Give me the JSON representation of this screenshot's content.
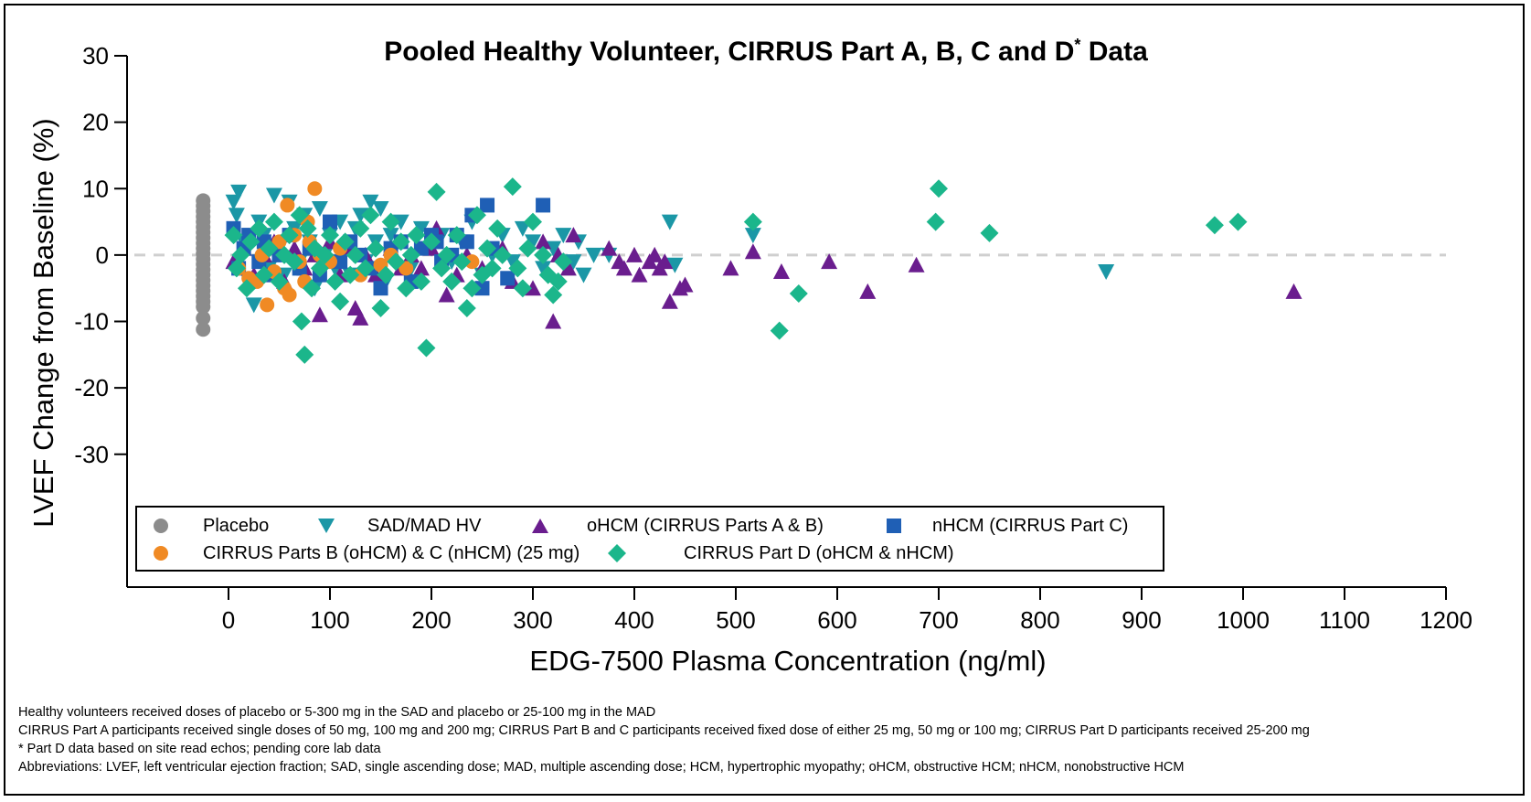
{
  "colors": {
    "placebo": "#8c8c8c",
    "sad_mad": "#1b97a6",
    "ohcm": "#6a1d8e",
    "nhcm": "#1f5fb5",
    "cirrus_bc": "#f08a24",
    "cirrus_d": "#1bb68b",
    "zero_line": "#cfcfcf"
  },
  "chart_data": {
    "type": "scatter",
    "title": "Pooled Healthy Volunteer, CIRRUS Part A, B, C and D",
    "title_sup": "*",
    "title_suffix": " Data",
    "xlabel": "EDG-7500 Plasma Concentration (ng/ml)",
    "ylabel": "LVEF Change from Baseline (%)",
    "xlim": [
      -100,
      1200
    ],
    "ylim": [
      -50,
      30
    ],
    "x_ticks": [
      0,
      100,
      200,
      300,
      400,
      500,
      600,
      700,
      800,
      900,
      1000,
      1100,
      1200
    ],
    "y_ticks": [
      30,
      20,
      10,
      0,
      -10,
      -20,
      -30
    ],
    "grid": false,
    "reference_line_y": 0,
    "legend_position": "bottom-left inside plot",
    "series": [
      {
        "name": "Placebo",
        "marker": "circle",
        "color_key": "placebo",
        "points": [
          [
            -25,
            8.2
          ],
          [
            -25,
            7.4
          ],
          [
            -25,
            6.6
          ],
          [
            -25,
            5.8
          ],
          [
            -25,
            5.0
          ],
          [
            -25,
            4.2
          ],
          [
            -25,
            3.4
          ],
          [
            -25,
            2.6
          ],
          [
            -25,
            1.8
          ],
          [
            -25,
            1.0
          ],
          [
            -25,
            0.2
          ],
          [
            -25,
            -0.6
          ],
          [
            -25,
            -1.4
          ],
          [
            -25,
            -2.2
          ],
          [
            -25,
            -3.0
          ],
          [
            -25,
            -3.8
          ],
          [
            -25,
            -4.6
          ],
          [
            -25,
            -5.4
          ],
          [
            -25,
            -6.2
          ],
          [
            -25,
            -7.0
          ],
          [
            -25,
            -7.8
          ],
          [
            -25,
            -9.5
          ],
          [
            -25,
            -11.2
          ]
        ]
      },
      {
        "name": "SAD/MAD HV",
        "marker": "triangle-down",
        "color_key": "sad_mad",
        "points": [
          [
            5,
            8
          ],
          [
            8,
            6
          ],
          [
            10,
            9.5
          ],
          [
            15,
            2
          ],
          [
            20,
            -4
          ],
          [
            25,
            -7.5
          ],
          [
            30,
            5
          ],
          [
            35,
            3
          ],
          [
            40,
            -2
          ],
          [
            45,
            9
          ],
          [
            50,
            1
          ],
          [
            55,
            -3
          ],
          [
            60,
            8
          ],
          [
            65,
            4
          ],
          [
            70,
            -1
          ],
          [
            75,
            6
          ],
          [
            80,
            2
          ],
          [
            85,
            -5
          ],
          [
            90,
            7
          ],
          [
            95,
            0
          ],
          [
            100,
            3
          ],
          [
            105,
            -2
          ],
          [
            110,
            5
          ],
          [
            115,
            1
          ],
          [
            120,
            -3
          ],
          [
            125,
            4
          ],
          [
            130,
            6
          ],
          [
            135,
            -1
          ],
          [
            140,
            8
          ],
          [
            145,
            2
          ],
          [
            150,
            7
          ],
          [
            155,
            -4
          ],
          [
            160,
            3
          ],
          [
            170,
            5
          ],
          [
            180,
            -2
          ],
          [
            190,
            4
          ],
          [
            200,
            1
          ],
          [
            210,
            3
          ],
          [
            220,
            -1
          ],
          [
            230,
            2
          ],
          [
            240,
            5
          ],
          [
            250,
            -3
          ],
          [
            260,
            0
          ],
          [
            270,
            3
          ],
          [
            280,
            -1
          ],
          [
            290,
            4
          ],
          [
            300,
            2
          ],
          [
            310,
            -2
          ],
          [
            320,
            1
          ],
          [
            330,
            3
          ],
          [
            340,
            -1
          ],
          [
            345,
            2
          ],
          [
            350,
            -3
          ],
          [
            360,
            0
          ],
          [
            375,
            0
          ],
          [
            435,
            5
          ],
          [
            440,
            -1.5
          ],
          [
            517,
            3
          ],
          [
            865,
            -2.5
          ]
        ]
      },
      {
        "name": "oHCM (CIRRUS Parts  A & B)",
        "marker": "triangle-up",
        "color_key": "ohcm",
        "points": [
          [
            5,
            -1
          ],
          [
            15,
            1
          ],
          [
            25,
            -3
          ],
          [
            35,
            0
          ],
          [
            45,
            2
          ],
          [
            55,
            -4
          ],
          [
            65,
            1
          ],
          [
            75,
            -2
          ],
          [
            85,
            0
          ],
          [
            90,
            -9
          ],
          [
            100,
            2
          ],
          [
            110,
            -3
          ],
          [
            120,
            1
          ],
          [
            125,
            -8
          ],
          [
            130,
            -9.5
          ],
          [
            135,
            0
          ],
          [
            145,
            -3
          ],
          [
            160,
            1
          ],
          [
            170,
            -2
          ],
          [
            180,
            0
          ],
          [
            190,
            -2
          ],
          [
            200,
            1
          ],
          [
            205,
            4
          ],
          [
            210,
            -1
          ],
          [
            215,
            -6
          ],
          [
            225,
            -3
          ],
          [
            235,
            0
          ],
          [
            250,
            -2
          ],
          [
            270,
            1
          ],
          [
            280,
            -4
          ],
          [
            300,
            -5
          ],
          [
            310,
            2
          ],
          [
            320,
            -10
          ],
          [
            325,
            0
          ],
          [
            335,
            -2
          ],
          [
            340,
            3
          ],
          [
            375,
            1
          ],
          [
            385,
            -1
          ],
          [
            390,
            -2
          ],
          [
            400,
            0
          ],
          [
            405,
            -3
          ],
          [
            415,
            -1
          ],
          [
            420,
            0
          ],
          [
            425,
            -2
          ],
          [
            430,
            -1
          ],
          [
            435,
            -7
          ],
          [
            445,
            -5
          ],
          [
            450,
            -4.5
          ],
          [
            495,
            -2
          ],
          [
            517,
            0.5
          ],
          [
            545,
            -2.5
          ],
          [
            592,
            -1
          ],
          [
            630,
            -5.5
          ],
          [
            678,
            -1.5
          ],
          [
            1050,
            -5.5
          ]
        ]
      },
      {
        "name": "nHCM (CIRRUS Part  C)",
        "marker": "square",
        "color_key": "nhcm",
        "points": [
          [
            5,
            4
          ],
          [
            10,
            -2
          ],
          [
            15,
            1
          ],
          [
            20,
            3
          ],
          [
            30,
            -1
          ],
          [
            35,
            2
          ],
          [
            40,
            -3
          ],
          [
            50,
            0
          ],
          [
            60,
            3
          ],
          [
            70,
            -2
          ],
          [
            80,
            1
          ],
          [
            90,
            -3
          ],
          [
            100,
            5
          ],
          [
            110,
            -1
          ],
          [
            120,
            2
          ],
          [
            130,
            0
          ],
          [
            140,
            -2
          ],
          [
            150,
            -5
          ],
          [
            160,
            1
          ],
          [
            170,
            2
          ],
          [
            180,
            -4
          ],
          [
            190,
            1
          ],
          [
            200,
            3
          ],
          [
            205,
            2
          ],
          [
            210,
            -1
          ],
          [
            220,
            0
          ],
          [
            225,
            3
          ],
          [
            235,
            2
          ],
          [
            240,
            6
          ],
          [
            250,
            -5
          ],
          [
            255,
            7.5
          ],
          [
            260,
            1
          ],
          [
            275,
            -3.5
          ],
          [
            310,
            7.5
          ]
        ]
      },
      {
        "name": "CIRRUS Parts B (oHCM) & C (nHCM) (25 mg)",
        "marker": "circle",
        "color_key": "cirrus_bc",
        "points": [
          [
            10,
            -2
          ],
          [
            20,
            -3.5
          ],
          [
            28,
            -4
          ],
          [
            33,
            0
          ],
          [
            38,
            -7.5
          ],
          [
            45,
            -2.5
          ],
          [
            50,
            2
          ],
          [
            55,
            -5
          ],
          [
            58,
            7.5
          ],
          [
            60,
            -6
          ],
          [
            65,
            3
          ],
          [
            70,
            -1
          ],
          [
            75,
            -4
          ],
          [
            78,
            5
          ],
          [
            80,
            2
          ],
          [
            85,
            10
          ],
          [
            90,
            0
          ],
          [
            100,
            -1
          ],
          [
            110,
            1
          ],
          [
            130,
            -3
          ],
          [
            150,
            -1.5
          ],
          [
            160,
            0
          ],
          [
            175,
            -2
          ],
          [
            240,
            -1
          ]
        ]
      },
      {
        "name": "CIRRUS Part D (oHCM & nHCM)",
        "marker": "diamond",
        "color_key": "cirrus_d",
        "points": [
          [
            5,
            3
          ],
          [
            8,
            -2
          ],
          [
            12,
            0
          ],
          [
            18,
            -5
          ],
          [
            22,
            2
          ],
          [
            30,
            4
          ],
          [
            35,
            -3
          ],
          [
            40,
            1
          ],
          [
            45,
            5
          ],
          [
            50,
            -4
          ],
          [
            55,
            0
          ],
          [
            60,
            3
          ],
          [
            65,
            -1
          ],
          [
            70,
            6
          ],
          [
            72,
            -10
          ],
          [
            75,
            -15
          ],
          [
            78,
            4
          ],
          [
            82,
            -5
          ],
          [
            85,
            1
          ],
          [
            90,
            -2
          ],
          [
            95,
            0
          ],
          [
            100,
            3
          ],
          [
            105,
            -4
          ],
          [
            110,
            -7
          ],
          [
            115,
            2
          ],
          [
            120,
            -3
          ],
          [
            125,
            0
          ],
          [
            130,
            4
          ],
          [
            135,
            -2
          ],
          [
            140,
            6
          ],
          [
            145,
            1
          ],
          [
            150,
            -8
          ],
          [
            155,
            -3
          ],
          [
            160,
            5
          ],
          [
            165,
            -1
          ],
          [
            170,
            2
          ],
          [
            175,
            -5
          ],
          [
            180,
            0
          ],
          [
            185,
            3
          ],
          [
            190,
            -4
          ],
          [
            195,
            -14
          ],
          [
            200,
            2
          ],
          [
            205,
            9.5
          ],
          [
            210,
            -2
          ],
          [
            215,
            0
          ],
          [
            220,
            -4
          ],
          [
            225,
            3
          ],
          [
            230,
            -1
          ],
          [
            235,
            -8
          ],
          [
            240,
            -5
          ],
          [
            245,
            6
          ],
          [
            250,
            -3
          ],
          [
            255,
            1
          ],
          [
            260,
            -2
          ],
          [
            265,
            4
          ],
          [
            270,
            0
          ],
          [
            280,
            10.3
          ],
          [
            285,
            -2
          ],
          [
            290,
            -5
          ],
          [
            295,
            1
          ],
          [
            300,
            5
          ],
          [
            310,
            0
          ],
          [
            315,
            -3
          ],
          [
            320,
            -6
          ],
          [
            325,
            -4
          ],
          [
            330,
            -1
          ],
          [
            517,
            5
          ],
          [
            543,
            -11.4
          ],
          [
            562,
            -5.8
          ],
          [
            697,
            5
          ],
          [
            700,
            10
          ],
          [
            750,
            3.3
          ],
          [
            972,
            4.5
          ],
          [
            995,
            5
          ]
        ]
      }
    ]
  },
  "legend": {
    "items": [
      {
        "label": "Placebo"
      },
      {
        "label": "SAD/MAD HV"
      },
      {
        "label": "oHCM (CIRRUS Parts  A & B)"
      },
      {
        "label": "nHCM (CIRRUS Part  C)"
      },
      {
        "label": "CIRRUS Parts B (oHCM) & C (nHCM) (25 mg)"
      },
      {
        "label": "CIRRUS Part D (oHCM & nHCM)"
      }
    ]
  },
  "footnotes": [
    "Healthy volunteers  received doses of placebo or 5-300 mg in the SAD and placebo or 25-100 mg in the MAD",
    "CIRRUS Part A participants received single doses of 50 mg, 100 mg and 200 mg; CIRRUS Part B and C participants received fixed dose of either 25 mg, 50 mg or 100 mg; CIRRUS  Part D participants received 25-200 mg",
    "* Part D data based on site read echos; pending core lab data",
    "Abbreviations:  LVEF, left ventricular ejection fraction; SAD, single ascending dose; MAD, multiple  ascending dose; HCM, hypertrophic myopathy; oHCM, obstructive  HCM; nHCM,  nonobstructive  HCM"
  ]
}
